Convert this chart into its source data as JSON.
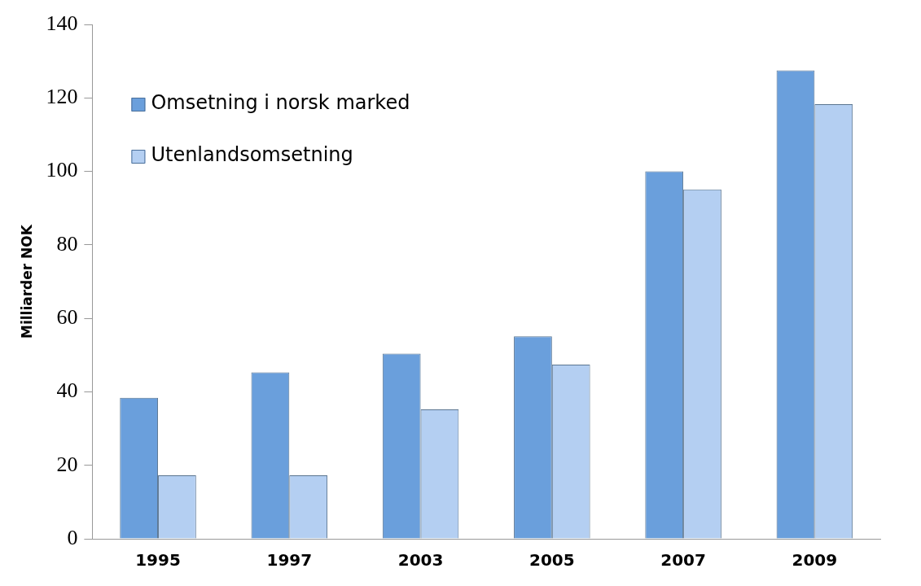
{
  "chart_data": {
    "type": "bar",
    "ylabel": "Milliarder NOK",
    "categories": [
      "1995",
      "1997",
      "2003",
      "2005",
      "2007",
      "2009"
    ],
    "series": [
      {
        "name": "Omsetning i norsk marked",
        "color": "#6a9fdc",
        "values": [
          38.4,
          45.3,
          50.4,
          55.1,
          100,
          127.5
        ]
      },
      {
        "name": "Utenlandsomsetning",
        "color": "#b4cff2",
        "values": [
          17.3,
          17.3,
          35.2,
          47.4,
          95.1,
          118.3
        ]
      }
    ],
    "ylim": [
      0,
      140
    ],
    "yticks": [
      0,
      20,
      40,
      60,
      80,
      100,
      120,
      140
    ],
    "grid": false,
    "legend": "top left"
  }
}
